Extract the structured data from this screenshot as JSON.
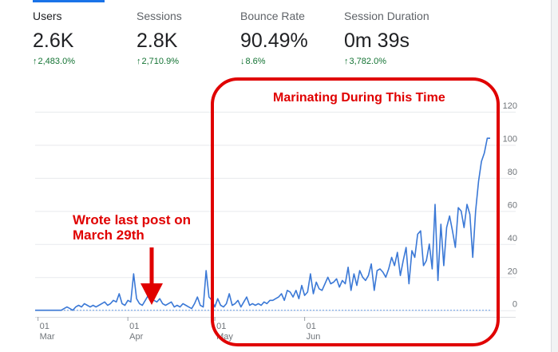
{
  "metrics": [
    {
      "label": "Users",
      "value": "2.6K",
      "change": "2,483.0%",
      "direction": "up"
    },
    {
      "label": "Sessions",
      "value": "2.8K",
      "change": "2,710.9%",
      "direction": "up"
    },
    {
      "label": "Bounce Rate",
      "value": "90.49%",
      "change": "8.6%",
      "direction": "down"
    },
    {
      "label": "Session Duration",
      "value": "0m 39s",
      "change": "3,782.0%",
      "direction": "up"
    }
  ],
  "colors": {
    "series_line": "#3a78d6",
    "compare_line": "#7aa7e8",
    "annotation": "#e00000",
    "positive_change": "#137333",
    "gridline": "#e8eaed"
  },
  "annotations": {
    "box_label": "Marinating During This Time",
    "post_label_line1": "Wrote last post on",
    "post_label_line2": "March 29th"
  },
  "chart_data": {
    "type": "line",
    "x_start": "2019-02-28",
    "x_ticks": [
      {
        "day": "01",
        "month": "Mar",
        "date": "2019-03-01"
      },
      {
        "day": "01",
        "month": "Apr",
        "date": "2019-04-01"
      },
      {
        "day": "01",
        "month": "May",
        "date": "2019-05-01"
      },
      {
        "day": "01",
        "month": "Jun",
        "date": "2019-06-01"
      }
    ],
    "y_ticks": [
      0,
      20,
      40,
      60,
      80,
      100,
      120
    ],
    "ylim": [
      -4,
      120
    ],
    "grid": true,
    "series": [
      {
        "values": [
          0,
          0,
          0,
          0,
          0,
          0,
          0,
          0,
          0,
          0,
          1,
          2,
          1,
          0,
          2,
          3,
          2,
          4,
          3,
          2,
          3,
          2,
          3,
          4,
          5,
          3,
          4,
          6,
          5,
          10,
          4,
          3,
          6,
          5,
          22,
          7,
          4,
          3,
          6,
          9,
          12,
          6,
          5,
          7,
          4,
          3,
          4,
          5,
          2,
          3,
          2,
          4,
          3,
          2,
          1,
          4,
          8,
          3,
          2,
          24,
          8,
          6,
          2,
          7,
          3,
          2,
          4,
          10,
          3,
          4,
          6,
          2,
          5,
          8,
          3,
          4,
          3,
          4,
          3,
          5,
          4,
          6,
          6,
          7,
          8,
          10,
          6,
          12,
          11,
          8,
          12,
          7,
          15,
          9,
          11,
          22,
          10,
          17,
          13,
          12,
          16,
          20,
          16,
          17,
          19,
          14,
          18,
          16,
          26,
          12,
          22,
          15,
          24,
          20,
          18,
          21,
          28,
          12,
          24,
          25,
          23,
          20,
          25,
          32,
          27,
          35,
          21,
          30,
          38,
          16,
          36,
          32,
          46,
          48,
          27,
          30,
          40,
          25,
          64,
          18,
          52,
          27,
          50,
          57,
          48,
          38,
          62,
          60,
          50,
          64,
          58,
          32,
          60,
          78,
          90,
          95,
          104,
          104
        ],
        "approx": true
      },
      {
        "values": [
          0,
          0,
          0,
          0,
          0,
          0,
          0,
          0,
          0,
          0,
          0,
          0,
          0,
          0,
          0,
          0,
          0,
          0,
          0,
          0,
          0,
          0,
          0,
          0,
          0,
          0,
          0,
          0,
          0,
          0,
          0,
          0,
          0,
          0,
          0,
          0,
          0,
          0,
          0,
          0,
          0,
          0,
          0,
          0,
          0,
          0,
          0,
          0,
          0,
          0,
          0,
          0,
          0,
          0,
          0,
          0,
          0,
          0,
          0,
          0,
          0,
          0,
          0,
          0,
          0,
          0,
          0,
          0,
          0,
          0,
          0,
          0,
          0,
          0,
          0,
          0,
          0,
          0,
          0,
          0,
          0,
          0,
          0,
          0,
          0,
          0,
          0,
          0,
          0,
          0,
          0,
          0,
          0,
          0,
          0,
          0,
          0,
          0,
          0,
          0,
          0,
          0,
          0,
          0,
          0,
          0,
          0,
          0,
          0,
          0,
          0,
          0,
          0,
          0,
          0,
          0,
          0,
          0,
          0,
          0,
          0,
          0,
          0,
          0,
          0,
          0,
          0,
          0,
          0,
          0,
          0,
          0,
          0,
          0,
          0,
          0,
          0,
          0,
          0,
          0,
          0,
          0,
          0,
          0,
          0,
          0,
          0,
          0,
          0,
          0,
          0,
          0,
          0,
          0,
          0,
          0,
          0,
          0
        ],
        "approx": true
      }
    ]
  }
}
